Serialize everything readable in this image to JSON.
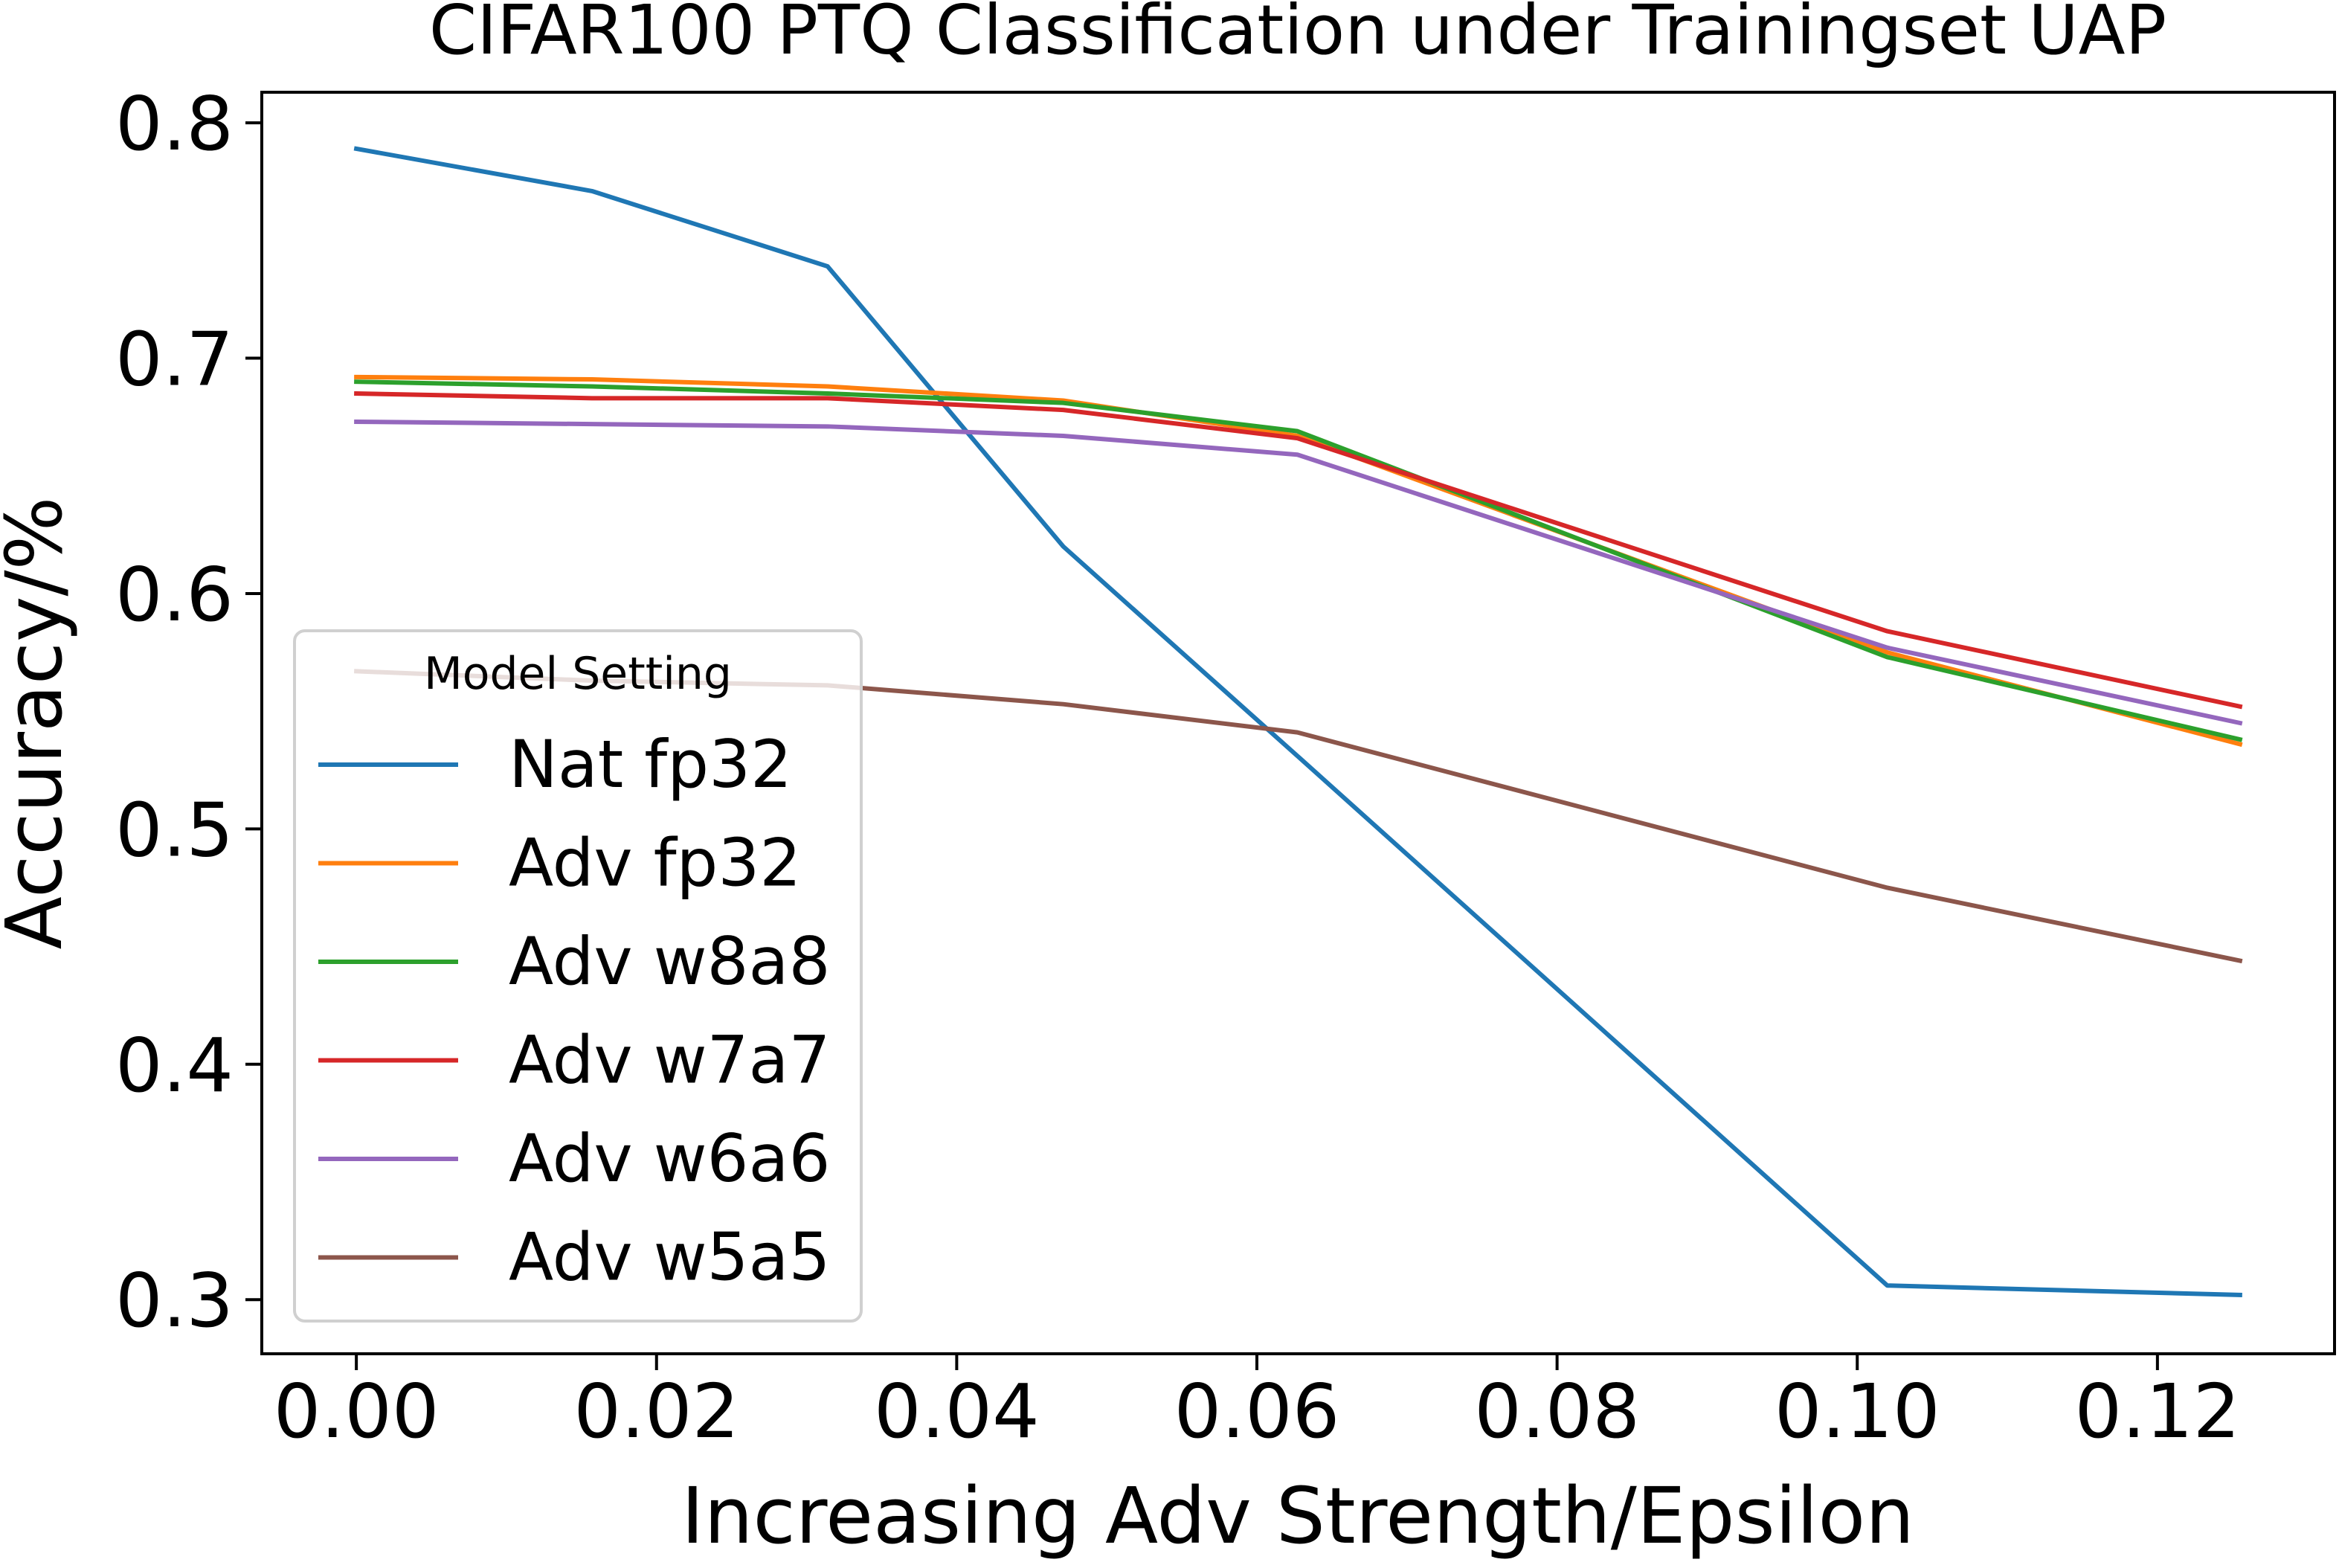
{
  "chart_data": {
    "type": "line",
    "title": "CIFAR100 PTQ Classification under Trainingset UAP",
    "xlabel": "Increasing Adv Strength/Epsilon",
    "ylabel": "Accuracy/%",
    "x": [
      0.0,
      0.0157,
      0.0314,
      0.0471,
      0.0627,
      0.102,
      0.1255
    ],
    "xlim": [
      -0.0063,
      0.1318
    ],
    "ylim": [
      0.277,
      0.813
    ],
    "xticks": [
      0.0,
      0.02,
      0.04,
      0.06,
      0.08,
      0.1,
      0.12
    ],
    "xtick_labels": [
      "0.00",
      "0.02",
      "0.04",
      "0.06",
      "0.08",
      "0.10",
      "0.12"
    ],
    "yticks": [
      0.3,
      0.4,
      0.5,
      0.6,
      0.7,
      0.8
    ],
    "ytick_labels": [
      "0.3",
      "0.4",
      "0.5",
      "0.6",
      "0.7",
      "0.8"
    ],
    "grid": false,
    "legend": {
      "title": "Model Setting",
      "placement": "lower-left"
    },
    "series": [
      {
        "name": "Nat fp32",
        "color": "#1f77b4",
        "values": [
          0.789,
          0.771,
          0.739,
          0.62,
          0.531,
          0.306,
          0.302
        ]
      },
      {
        "name": "Adv fp32",
        "color": "#ff7f0e",
        "values": [
          0.692,
          0.691,
          0.688,
          0.682,
          0.667,
          0.575,
          0.536
        ]
      },
      {
        "name": "Adv w8a8",
        "color": "#2ca02c",
        "values": [
          0.69,
          0.688,
          0.685,
          0.681,
          0.669,
          0.573,
          0.538
        ]
      },
      {
        "name": "Adv w7a7",
        "color": "#d62728",
        "values": [
          0.685,
          0.683,
          0.683,
          0.678,
          0.666,
          0.584,
          0.552
        ]
      },
      {
        "name": "Adv w6a6",
        "color": "#9467bd",
        "values": [
          0.673,
          0.672,
          0.671,
          0.667,
          0.659,
          0.577,
          0.545
        ]
      },
      {
        "name": "Adv w5a5",
        "color": "#8c564b",
        "values": [
          0.567,
          0.563,
          0.561,
          0.553,
          0.541,
          0.475,
          0.444
        ]
      }
    ]
  }
}
